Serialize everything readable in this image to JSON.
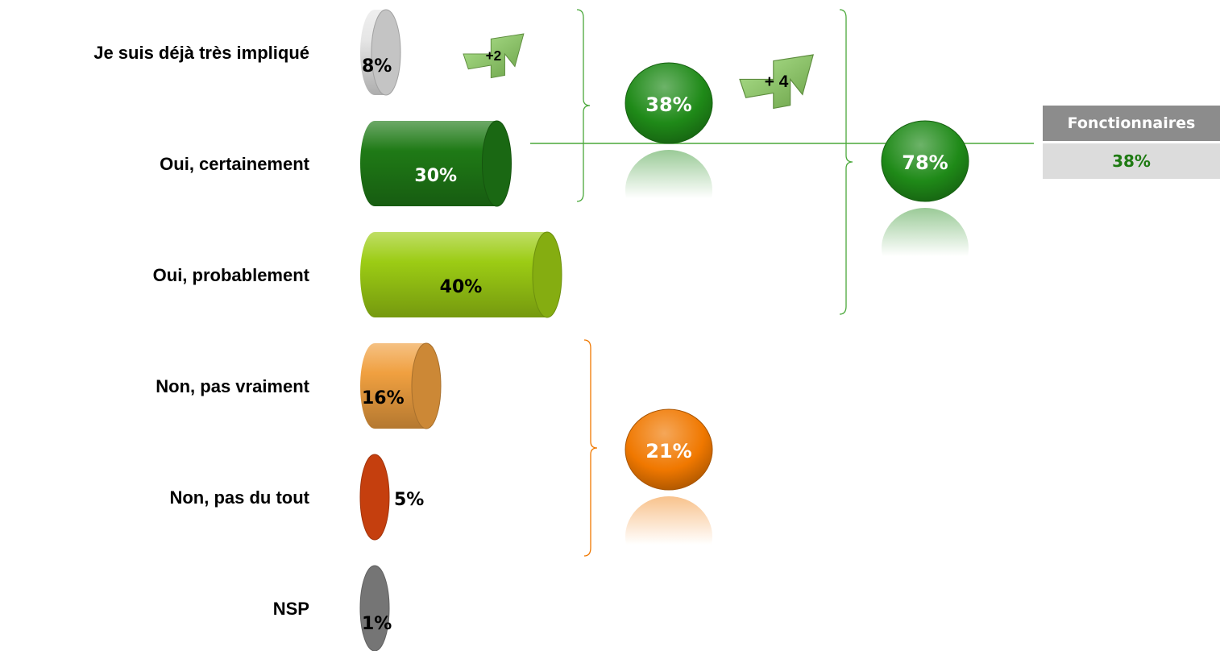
{
  "chart_data": {
    "type": "bar",
    "categories": [
      "Je suis déjà très impliqué",
      "Oui, certainement",
      "Oui, probablement",
      "Non, pas vraiment",
      "Non, pas du tout",
      "NSP"
    ],
    "values": [
      8,
      30,
      40,
      16,
      5,
      1
    ],
    "value_labels": [
      "8%",
      "30%",
      "40%",
      "16%",
      "5%",
      "1%"
    ],
    "colors": [
      "#e6e6e6",
      "#1f7a16",
      "#9ccc14",
      "#f0a040",
      "#e84a10",
      "#8a8a8a"
    ],
    "orientation": "horizontal",
    "title": "",
    "xlabel": "",
    "ylabel": "",
    "groups": [
      {
        "value": 38,
        "label": "38%",
        "color": "#1f8a18",
        "members": [
          "Je suis déjà très impliqué",
          "Oui, certainement"
        ]
      },
      {
        "value": 78,
        "label": "78%",
        "color": "#1f8a18",
        "members": [
          "Je suis déjà très impliqué",
          "Oui, certainement",
          "Oui, probablement"
        ]
      },
      {
        "value": 21,
        "label": "21%",
        "color": "#f07800",
        "members": [
          "Non, pas vraiment",
          "Non, pas du tout"
        ]
      }
    ],
    "evolutions": [
      {
        "label": "+2",
        "applies_to": "Je suis déjà très impliqué"
      },
      {
        "label": "+ 4",
        "applies_to": "38%"
      }
    ]
  },
  "comparison": {
    "header": "Fonctionnaires",
    "value": "38%"
  },
  "colors": {
    "accent_green": "#1f8a18",
    "accent_orange": "#f07800",
    "arrow_green": "#8fd860"
  }
}
